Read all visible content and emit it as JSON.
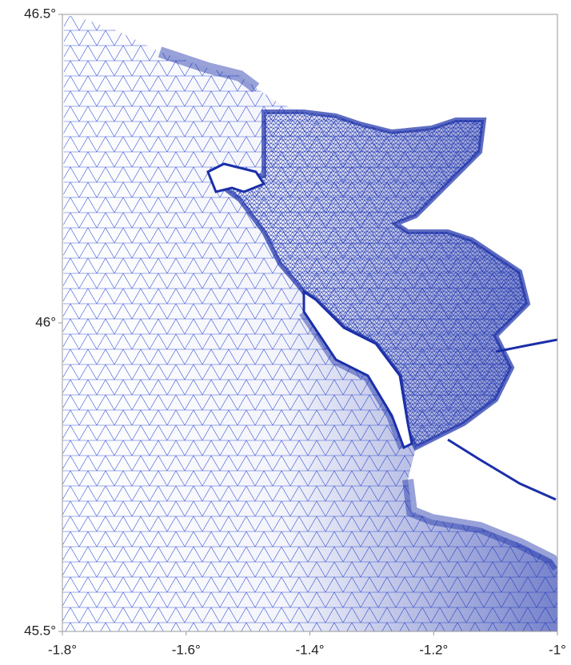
{
  "map": {
    "xlim": [
      -1.8,
      -1
    ],
    "ylim": [
      45.5,
      46.5
    ],
    "xticks": [
      {
        "value": -1.8,
        "label": "-1.8°"
      },
      {
        "value": -1.6,
        "label": "-1.6°"
      },
      {
        "value": -1.4,
        "label": "-1.4°"
      },
      {
        "value": -1.2,
        "label": "-1.2°"
      },
      {
        "value": -1,
        "label": "-1°"
      }
    ],
    "yticks": [
      {
        "value": 45.5,
        "label": "45.5°"
      },
      {
        "value": 46,
        "label": "46°"
      },
      {
        "value": 46.5,
        "label": "46.5°"
      }
    ]
  }
}
